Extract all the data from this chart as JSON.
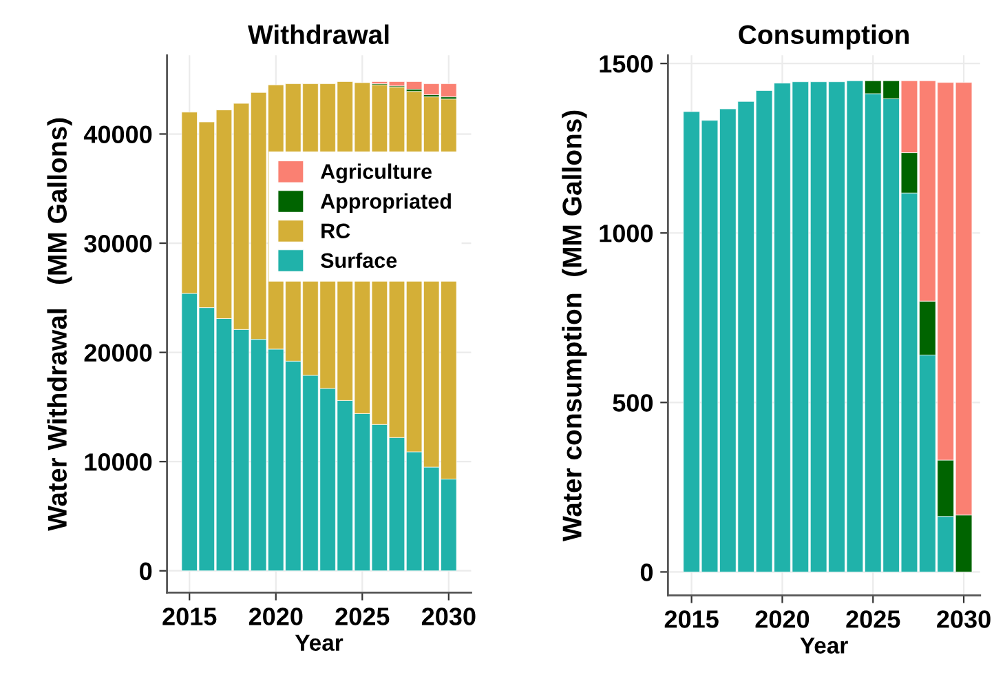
{
  "chart_data": [
    {
      "type": "bar",
      "stacked": true,
      "title": "Withdrawal",
      "xlabel": "Year",
      "ylabel": "Water Withdrawal   (MM Gallons)",
      "x": [
        2015,
        2016,
        2017,
        2018,
        2019,
        2020,
        2021,
        2022,
        2023,
        2024,
        2025,
        2026,
        2027,
        2028,
        2029,
        2030
      ],
      "series": [
        {
          "name": "Surface",
          "color": "#20b2aa",
          "values": [
            25400,
            24100,
            23100,
            22100,
            21200,
            20300,
            19200,
            17900,
            16700,
            15600,
            14400,
            13400,
            12200,
            10900,
            9500,
            8400
          ]
        },
        {
          "name": "RC",
          "color": "#d4af37",
          "values": [
            16600,
            17000,
            19100,
            20700,
            22600,
            24200,
            25400,
            26700,
            27900,
            29200,
            30300,
            31100,
            32100,
            33000,
            33900,
            34800
          ]
        },
        {
          "name": "Appropriated",
          "color": "#006400",
          "values": [
            null,
            null,
            null,
            null,
            null,
            null,
            null,
            null,
            null,
            null,
            null,
            100,
            100,
            200,
            200,
            200
          ]
        },
        {
          "name": "Agriculture",
          "color": "#fa8072",
          "values": [
            null,
            null,
            null,
            null,
            null,
            null,
            null,
            null,
            null,
            null,
            null,
            200,
            400,
            700,
            1000,
            1200
          ]
        }
      ],
      "xlim": [
        2013.7,
        2031.3
      ],
      "xticks": [
        2015,
        2020,
        2025,
        2030
      ],
      "ylim": [
        -2000,
        47200
      ],
      "yticks": [
        0,
        10000,
        20000,
        30000,
        40000
      ],
      "grid": true,
      "legend": "right"
    },
    {
      "type": "bar",
      "stacked": true,
      "title": "Consumption",
      "xlabel": "Year",
      "ylabel": "Water consumption  (MM Gallons)",
      "x": [
        2015,
        2016,
        2017,
        2018,
        2019,
        2020,
        2021,
        2022,
        2023,
        2024,
        2025,
        2026,
        2027,
        2028,
        2029,
        2030
      ],
      "series": [
        {
          "color": "#20b2aa",
          "values": [
            1358,
            1332,
            1366,
            1388,
            1420,
            1442,
            1446,
            1446,
            1446,
            1449,
            1411,
            1396,
            1118,
            640,
            164,
            null
          ]
        },
        {
          "color": "#006400",
          "values": [
            null,
            null,
            null,
            null,
            null,
            null,
            null,
            null,
            null,
            null,
            38,
            53,
            119,
            159,
            166,
            168
          ]
        },
        {
          "color": "#fa8072",
          "values": [
            null,
            null,
            null,
            null,
            null,
            null,
            null,
            null,
            null,
            null,
            null,
            null,
            212,
            650,
            1114,
            1276
          ]
        }
      ],
      "xlim": [
        2013.7,
        2030.9
      ],
      "xticks": [
        2015,
        2020,
        2025,
        2030
      ],
      "ylim": [
        -69,
        1524
      ],
      "yticks": [
        0,
        500,
        1000,
        1500
      ],
      "grid": true
    }
  ]
}
